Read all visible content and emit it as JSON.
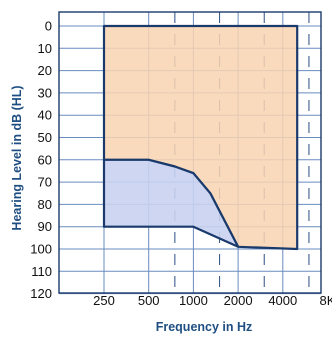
{
  "chart_data": {
    "type": "area",
    "title": "",
    "xlabel": "Frequency in Hz",
    "ylabel": "Hearing Level in dB (HL)",
    "x_scale": "log2",
    "x_ticks": [
      250,
      500,
      1000,
      2000,
      4000,
      8000
    ],
    "x_tick_labels": [
      "250",
      "500",
      "1000",
      "2000",
      "4000",
      "8K"
    ],
    "x_intermediate_ticks": [
      750,
      1500,
      3000,
      6000
    ],
    "ylim": [
      0,
      120
    ],
    "y_inverted": true,
    "y_ticks": [
      0,
      10,
      20,
      30,
      40,
      50,
      60,
      70,
      80,
      90,
      100,
      110,
      120
    ],
    "y_tick_labels": [
      "0",
      "10",
      "20",
      "30",
      "40",
      "50",
      "60",
      "70",
      "80",
      "90",
      "100",
      "110",
      "120"
    ],
    "grid": true,
    "series": [
      {
        "color": "#f9d4b2",
        "x": [
          250,
          250,
          500,
          750,
          1000,
          1300,
          2000,
          5000,
          5000
        ],
        "y": [
          0,
          60,
          60,
          63,
          66,
          75,
          99,
          100,
          0
        ]
      },
      {
        "color": "#c9d2ef",
        "x": [
          250,
          250,
          500,
          750,
          1000,
          1300,
          2000,
          1000,
          250
        ],
        "y": [
          90,
          60,
          60,
          63,
          66,
          75,
          99,
          90,
          90
        ]
      }
    ],
    "colors": {
      "border": "#1a3a6c",
      "grid_major": "#6a8bc0",
      "grid_minor": "#3e5e8e",
      "title": "#1f4f82"
    }
  }
}
